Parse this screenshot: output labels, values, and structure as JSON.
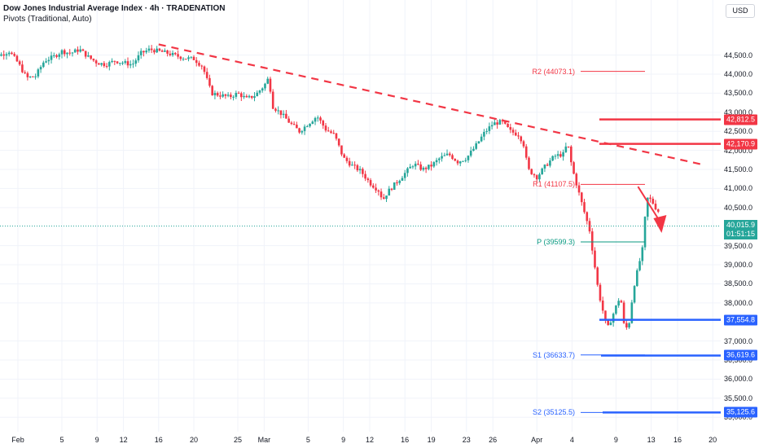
{
  "header": {
    "title": "Dow Jones Industrial Average Index · 4h · TRADENATION",
    "subtitle": "Pivots (Traditional, Auto)",
    "currency_button": "USD"
  },
  "price_axis": {
    "labels": [
      "44,500.0",
      "44,000.0",
      "43,500.0",
      "43,000.0",
      "42,500.0",
      "42,000.0",
      "41,500.0",
      "41,000.0",
      "40,500.0",
      "39,500.0",
      "39,000.0",
      "38,500.0",
      "38,000.0",
      "37,000.0",
      "36,500.0",
      "36,000.0",
      "35,500.0",
      "35,000.0"
    ],
    "values": [
      44500,
      44000,
      43500,
      43000,
      42500,
      42000,
      41500,
      41000,
      40500,
      39500,
      39000,
      38500,
      38000,
      37000,
      36500,
      36000,
      35500,
      35000
    ]
  },
  "time_axis": {
    "labels": [
      "Feb",
      "5",
      "9",
      "12",
      "16",
      "20",
      "25",
      "Mar",
      "5",
      "9",
      "12",
      "16",
      "19",
      "23",
      "26",
      "Apr",
      "4",
      "9",
      "13",
      "16",
      "20"
    ],
    "days": [
      0,
      5,
      9,
      12,
      16,
      20,
      25,
      28,
      33,
      37,
      40,
      44,
      47,
      51,
      54,
      59,
      63,
      68,
      72,
      75,
      79
    ]
  },
  "current_price": {
    "value_label": "40,015.9",
    "countdown": "01:51:15",
    "value": 40015.9,
    "color": "#26a69a"
  },
  "levels": [
    {
      "label": "42,812.5",
      "value": 42812.5,
      "color": "#f23645"
    },
    {
      "label": "42,170.9",
      "value": 42170.9,
      "color": "#f23645"
    },
    {
      "label": "37,554.8",
      "value": 37554.8,
      "color": "#2962ff"
    },
    {
      "label": "36,619.6",
      "value": 36619.6,
      "color": "#2962ff"
    },
    {
      "label": "35,125.6",
      "value": 35125.6,
      "color": "#2962ff"
    }
  ],
  "pivots": [
    {
      "label": "R2 (44073.1)",
      "value": 44073.1,
      "color": "#f23645"
    },
    {
      "label": "R1 (41107.5)",
      "value": 41107.5,
      "color": "#f23645"
    },
    {
      "label": "P (39599.3)",
      "value": 39599.3,
      "color": "#089981"
    },
    {
      "label": "S1 (36633.7)",
      "value": 36633.7,
      "color": "#2962ff"
    },
    {
      "label": "S2 (35125.5)",
      "value": 35125.5,
      "color": "#2962ff"
    }
  ],
  "chart_data": {
    "type": "candlestick",
    "title": "Dow Jones Industrial Average Index · 4h · TRADENATION",
    "ylim": [
      34920,
      45090
    ],
    "xlim_days": [
      -4,
      83
    ],
    "up_color": "#26a69a",
    "down_color": "#f23645",
    "trendline": {
      "from": {
        "day": 16,
        "price": 44780
      },
      "to": {
        "day": 78,
        "price": 41620
      },
      "color": "#f23645"
    },
    "projection_arrow": {
      "from": {
        "day": 70.5,
        "price": 41050
      },
      "to": {
        "day": 73,
        "price": 39920
      },
      "color": "#f23645"
    },
    "close_path": [
      [
        -4,
        44650
      ],
      [
        -2,
        44500
      ],
      [
        -1,
        44600
      ],
      [
        0,
        44300
      ],
      [
        1,
        43900
      ],
      [
        2,
        43950
      ],
      [
        3,
        44350
      ],
      [
        4,
        44450
      ],
      [
        5,
        44600
      ],
      [
        6,
        44550
      ],
      [
        7,
        44650
      ],
      [
        8,
        44450
      ],
      [
        9,
        44300
      ],
      [
        10,
        44250
      ],
      [
        11,
        44350
      ],
      [
        12,
        44300
      ],
      [
        13,
        44250
      ],
      [
        14,
        44550
      ],
      [
        15,
        44650
      ],
      [
        16,
        44600
      ],
      [
        17,
        44550
      ],
      [
        18,
        44480
      ],
      [
        19,
        44420
      ],
      [
        20,
        44400
      ],
      [
        21,
        44200
      ],
      [
        22,
        43500
      ],
      [
        23,
        43450
      ],
      [
        24,
        43400
      ],
      [
        25,
        43500
      ],
      [
        26,
        43350
      ],
      [
        27,
        43450
      ],
      [
        28,
        43700
      ],
      [
        28.5,
        43900
      ],
      [
        29,
        43150
      ],
      [
        30,
        42950
      ],
      [
        31,
        42700
      ],
      [
        32,
        42500
      ],
      [
        33,
        42700
      ],
      [
        34,
        42900
      ],
      [
        35,
        42550
      ],
      [
        36,
        42400
      ],
      [
        37,
        41800
      ],
      [
        38,
        41600
      ],
      [
        39,
        41450
      ],
      [
        40,
        41150
      ],
      [
        41,
        40950
      ],
      [
        41.5,
        40700
      ],
      [
        42,
        40900
      ],
      [
        43,
        41150
      ],
      [
        44,
        41400
      ],
      [
        45,
        41650
      ],
      [
        46,
        41500
      ],
      [
        47,
        41600
      ],
      [
        48,
        41800
      ],
      [
        49,
        41900
      ],
      [
        50,
        41700
      ],
      [
        51,
        41800
      ],
      [
        52,
        42100
      ],
      [
        53,
        42450
      ],
      [
        54,
        42700
      ],
      [
        55,
        42750
      ],
      [
        56,
        42500
      ],
      [
        57,
        42400
      ],
      [
        57.5,
        42150
      ],
      [
        58,
        41500
      ],
      [
        59,
        41300
      ],
      [
        60,
        41600
      ],
      [
        61,
        41850
      ],
      [
        62,
        41900
      ],
      [
        62.5,
        42200
      ],
      [
        63,
        41550
      ],
      [
        64,
        40700
      ],
      [
        65,
        39900
      ],
      [
        66,
        38300
      ],
      [
        67,
        37300
      ],
      [
        68,
        37900
      ],
      [
        68.5,
        38200
      ],
      [
        69,
        37250
      ],
      [
        69.5,
        37500
      ],
      [
        70,
        38400
      ],
      [
        71,
        39400
      ],
      [
        71.5,
        40750
      ],
      [
        72,
        40700
      ],
      [
        72.5,
        40500
      ],
      [
        73,
        40350
      ]
    ],
    "series_note": "4-hour OHLC candles; closes approximated from the pictured path"
  }
}
